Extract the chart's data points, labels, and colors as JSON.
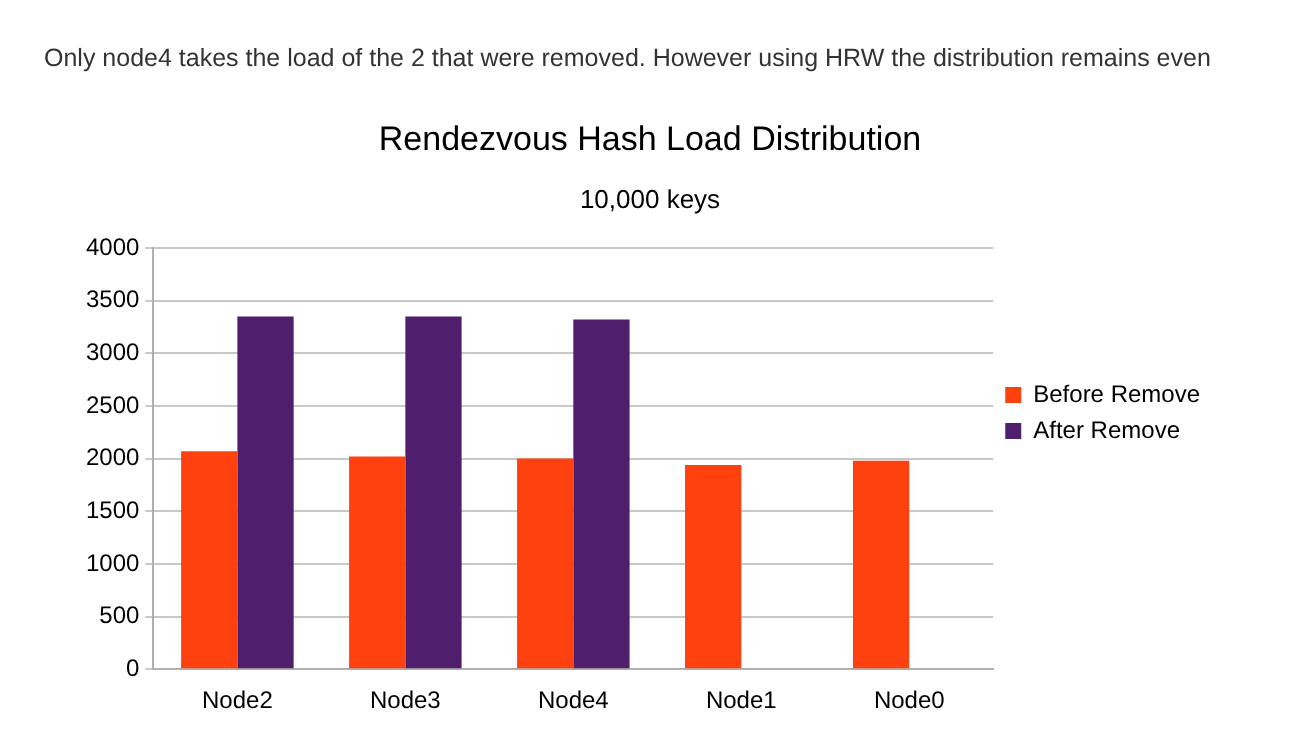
{
  "chart_data": {
    "type": "bar",
    "title": "Rendezvous Hash Load Distribution",
    "subtitle": "10,000 keys",
    "annotations": [
      "Only node4 takes the load of the 2 that were removed. However using HRW the distribution remains even"
    ],
    "categories": [
      "Node2",
      "Node3",
      "Node4",
      "Node1",
      "Node0"
    ],
    "series": [
      {
        "name": "Before Remove",
        "color": "#ff4110",
        "values": [
          2070,
          2020,
          2000,
          1940,
          1980
        ]
      },
      {
        "name": "After Remove",
        "color": "#4f1f6e",
        "values": [
          3350,
          3350,
          3320,
          null,
          null
        ]
      }
    ],
    "ylim": [
      0,
      4000
    ],
    "yticks": [
      0,
      500,
      1000,
      1500,
      2000,
      2500,
      3000,
      3500,
      4000
    ],
    "grid": "y",
    "legend": "right"
  }
}
